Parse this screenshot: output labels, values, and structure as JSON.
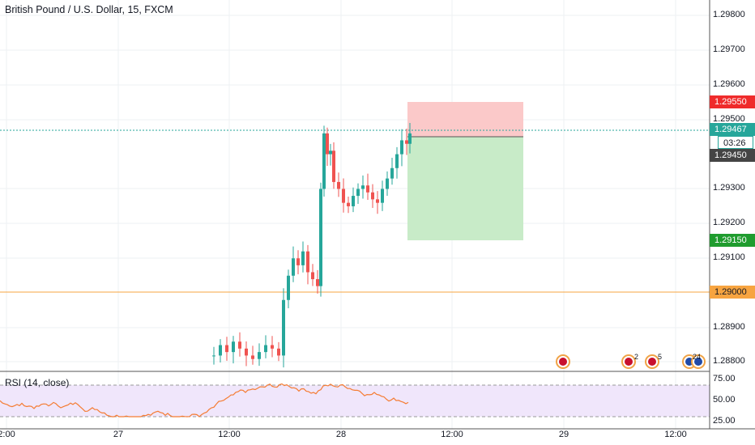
{
  "header": {
    "title": "British Pound / U.S. Dollar, 15, FXCM"
  },
  "price_axis": {
    "labels": [
      "1.29800",
      "1.29700",
      "1.29600",
      "1.29500",
      "1.29300",
      "1.29200",
      "1.29100",
      "1.28900",
      "1.28800"
    ]
  },
  "tags": {
    "stop": "1.29550",
    "last_price": "1.29467",
    "countdown": "03:26",
    "entry": "1.29450",
    "target": "1.29150",
    "level": "1.29000"
  },
  "rsi": {
    "label": "RSI (14, close)",
    "levels": [
      "75.00",
      "50.00",
      "25.00"
    ]
  },
  "time_axis": {
    "labels": [
      "2:00",
      "27",
      "12:00",
      "28",
      "12:00",
      "29",
      "12:00"
    ]
  },
  "events": {
    "counts": [
      "2",
      "5",
      "24"
    ]
  },
  "colors": {
    "up": "#26a69a",
    "down": "#ef5350",
    "stop_zone": "#fbc9c9",
    "target_zone": "#c8ebc8",
    "level": "#f7a440",
    "rsi_line": "#f57c33",
    "rsi_band": "#f0e6fb"
  }
}
